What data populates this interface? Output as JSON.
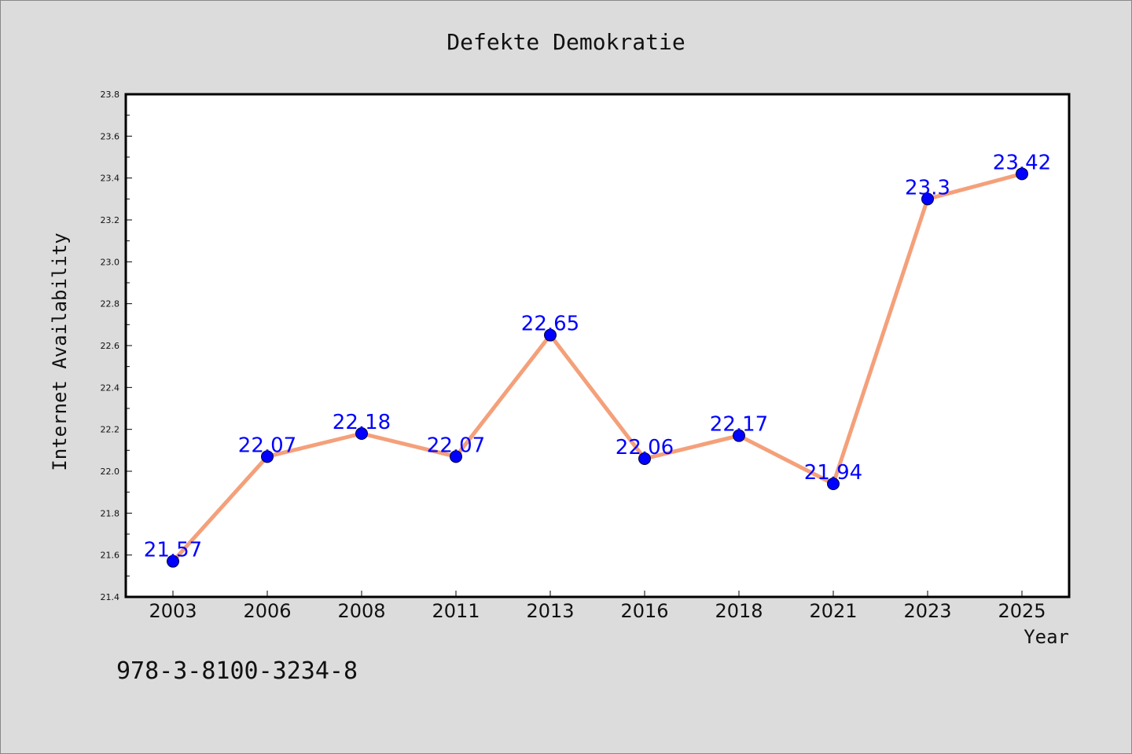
{
  "chart_data": {
    "type": "line",
    "title": "Defekte Demokratie",
    "xlabel": "Year",
    "ylabel": "Internet Availability",
    "categories": [
      "2003",
      "2006",
      "2008",
      "2011",
      "2013",
      "2016",
      "2018",
      "2021",
      "2023",
      "2025"
    ],
    "series": [
      {
        "values": [
          21.57,
          22.07,
          22.18,
          22.07,
          22.65,
          22.06,
          22.17,
          21.94,
          23.3,
          23.42
        ],
        "data_labels": [
          "21.57",
          "22.07",
          "22.18",
          "22.07",
          "22.65",
          "22.06",
          "22.17",
          "21.94",
          "23.3",
          "23.42"
        ]
      }
    ],
    "ylim": [
      21.4,
      23.8
    ],
    "yticks": [
      "21.4",
      "21.6",
      "21.8",
      "22.0",
      "22.2",
      "22.4",
      "22.6",
      "22.8",
      "23.0",
      "23.2",
      "23.4",
      "23.6",
      "23.8"
    ],
    "grid": false,
    "legend": "none",
    "colors": {
      "line": "#f4a07a",
      "marker": "#0000ff",
      "marker_edge": "#000033",
      "data_label": "#0000ff",
      "background": "#dcdcdc",
      "plot_background": "#ffffff"
    }
  },
  "footer": {
    "isbn": "978-3-8100-3234-8"
  }
}
